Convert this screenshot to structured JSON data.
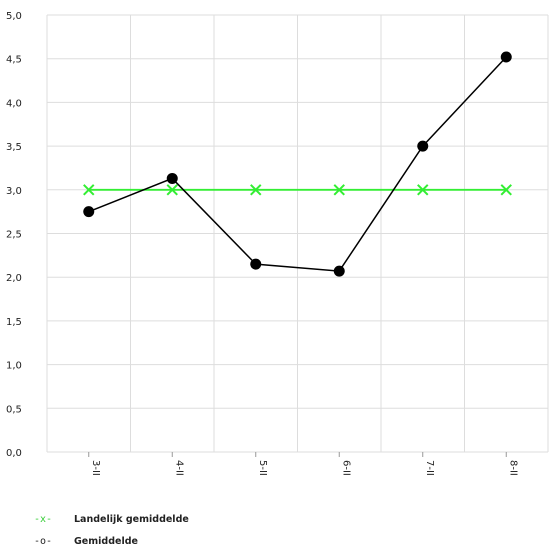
{
  "chart_data": {
    "type": "line",
    "categories": [
      "3-II",
      "4-II",
      "5-II",
      "6-II",
      "7-II",
      "8-II"
    ],
    "ylim": [
      0,
      5
    ],
    "yticks": [
      "0,0",
      "0,5",
      "1,0",
      "1,5",
      "2,0",
      "2,5",
      "3,0",
      "3,5",
      "4,0",
      "4,5",
      "5,0"
    ],
    "grid": true,
    "legend_position": "bottom-left",
    "series": [
      {
        "name": "Landelijk gemiddelde",
        "symbol": "-x-",
        "color": "#33ee33",
        "marker": "x",
        "values": [
          3.0,
          3.0,
          3.0,
          3.0,
          3.0,
          3.0
        ]
      },
      {
        "name": "Gemiddelde",
        "symbol": "-o-",
        "color": "#000000",
        "marker": "circle",
        "values": [
          2.75,
          3.13,
          2.15,
          2.07,
          3.5,
          4.52
        ]
      }
    ]
  }
}
